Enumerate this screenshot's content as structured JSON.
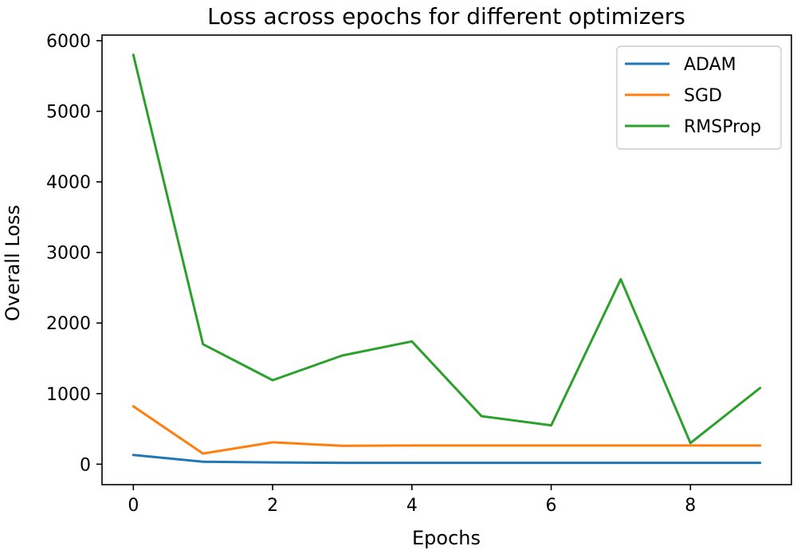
{
  "chart_data": {
    "type": "line",
    "title": "Loss across epochs for different optimizers",
    "xlabel": "Epochs",
    "ylabel": "Overall Loss",
    "x": [
      0,
      1,
      2,
      3,
      4,
      5,
      6,
      7,
      8,
      9
    ],
    "xlim": [
      -0.45,
      9.45
    ],
    "ylim": [
      -290,
      6080
    ],
    "xticks": [
      0,
      2,
      4,
      6,
      8
    ],
    "yticks": [
      0,
      1000,
      2000,
      3000,
      4000,
      5000,
      6000
    ],
    "grid": false,
    "legend_position": "top-right",
    "series": [
      {
        "name": "ADAM",
        "color": "#1f77b4",
        "values": [
          130,
          35,
          25,
          20,
          20,
          20,
          20,
          20,
          20,
          20
        ]
      },
      {
        "name": "SGD",
        "color": "#ff7f0e",
        "values": [
          820,
          150,
          310,
          260,
          265,
          265,
          265,
          265,
          265,
          265
        ]
      },
      {
        "name": "RMSProp",
        "color": "#2ca02c",
        "values": [
          5800,
          1700,
          1190,
          1540,
          1740,
          680,
          550,
          2620,
          300,
          1080
        ]
      }
    ]
  }
}
